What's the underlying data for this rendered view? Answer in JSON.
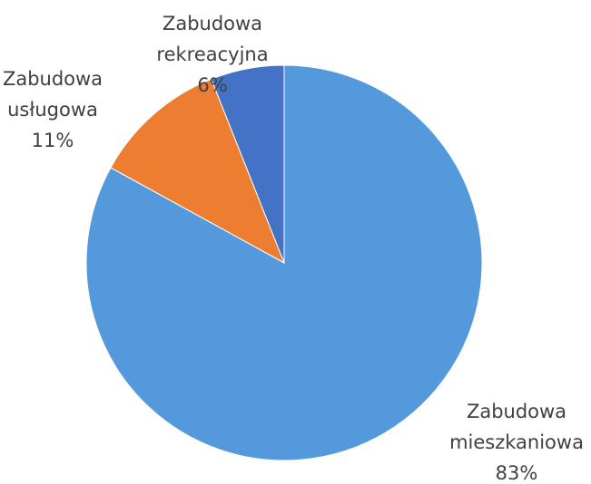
{
  "chart_data": {
    "type": "pie",
    "categories": [
      "Zabudowa mieszkaniowa",
      "Zabudowa usługowa",
      "Zabudowa rekreacyjna"
    ],
    "values": [
      83,
      11,
      6
    ],
    "value_labels": [
      "83%",
      "11%",
      "6%"
    ],
    "colors": [
      "#5599dd",
      "#ed7d31",
      "#4472c4"
    ]
  }
}
